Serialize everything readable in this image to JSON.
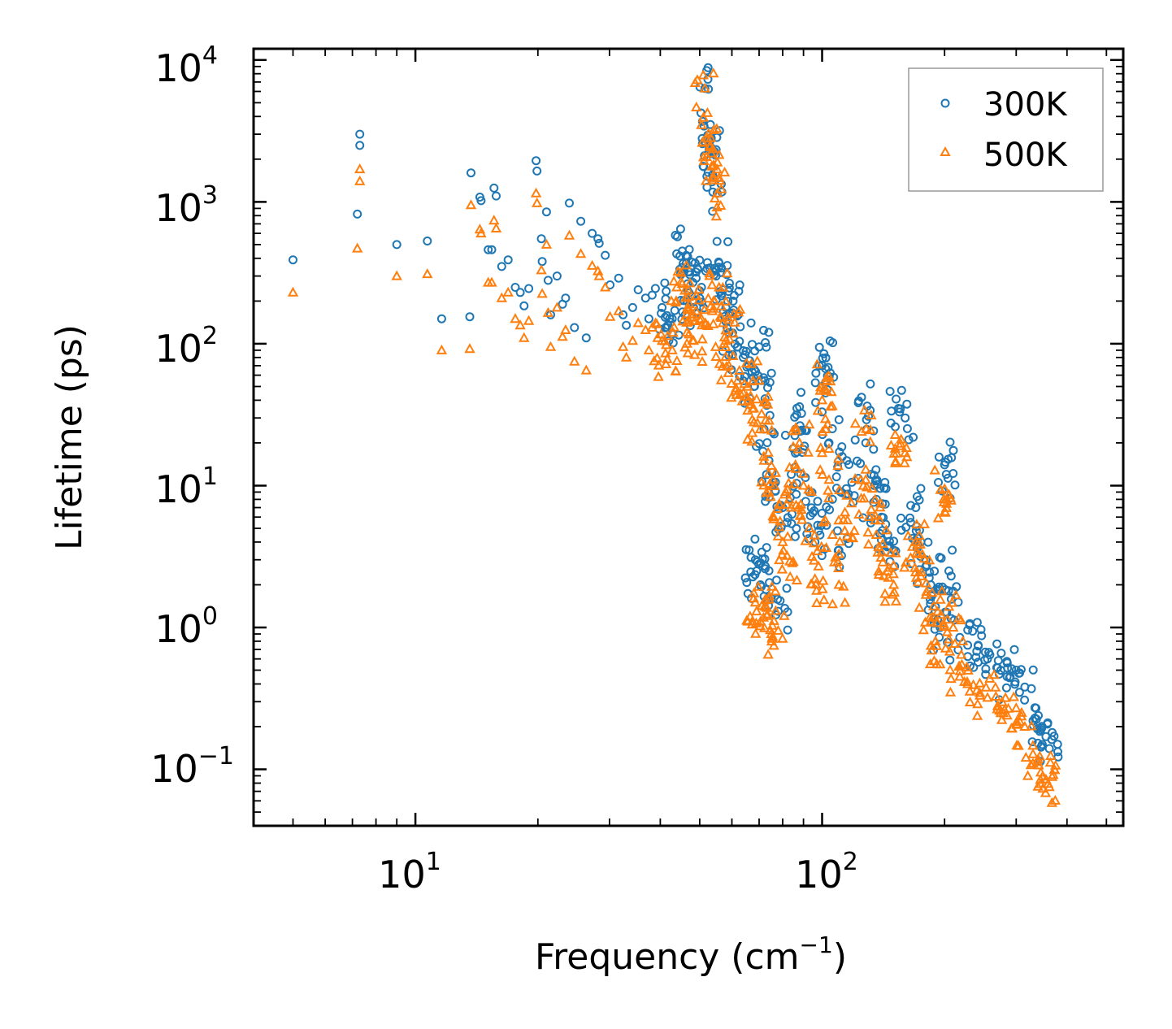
{
  "chart_data": {
    "type": "scatter",
    "xscale": "log",
    "yscale": "log",
    "xlim": [
      4,
      550
    ],
    "ylim": [
      0.04,
      12000
    ],
    "xlabel": "Frequency (cm",
    "xlabel_exp": "−1",
    "xlabel_close": ")",
    "ylabel": "Lifetime (ps)",
    "x_ticks": [
      {
        "base": "10",
        "exp": "1",
        "value": 10
      },
      {
        "base": "10",
        "exp": "2",
        "value": 100
      }
    ],
    "y_ticks": [
      {
        "base": "10",
        "exp": "4",
        "value": 10000
      },
      {
        "base": "10",
        "exp": "3",
        "value": 1000
      },
      {
        "base": "10",
        "exp": "2",
        "value": 100
      },
      {
        "base": "10",
        "exp": "1",
        "value": 10
      },
      {
        "base": "10",
        "exp": "0",
        "value": 1
      },
      {
        "base": "10",
        "exp": "−1",
        "value": 0.1
      }
    ],
    "legend": {
      "position": "top-right"
    },
    "series": [
      {
        "name": "300K",
        "marker": "circle",
        "color": "#1f77b4",
        "points": [
          [
            5.0,
            390
          ],
          [
            7.2,
            820
          ],
          [
            7.3,
            3000
          ],
          [
            7.3,
            2500
          ],
          [
            9.0,
            500
          ],
          [
            10.7,
            530
          ],
          [
            11.6,
            150
          ],
          [
            13.6,
            155
          ],
          [
            13.7,
            1600
          ],
          [
            14.4,
            1080
          ],
          [
            14.5,
            1020
          ],
          [
            15.1,
            460
          ],
          [
            15.4,
            460
          ],
          [
            15.6,
            1250
          ],
          [
            15.8,
            1100
          ],
          [
            16.3,
            350
          ],
          [
            16.9,
            390
          ],
          [
            17.6,
            250
          ],
          [
            18.1,
            230
          ],
          [
            18.5,
            185
          ],
          [
            19.0,
            245
          ],
          [
            19.8,
            1950
          ],
          [
            19.9,
            1650
          ],
          [
            20.4,
            550
          ],
          [
            20.5,
            380
          ],
          [
            21.0,
            850
          ],
          [
            21.2,
            280
          ],
          [
            21.5,
            160
          ],
          [
            22.3,
            300
          ],
          [
            23.0,
            190
          ],
          [
            23.4,
            210
          ],
          [
            23.9,
            980
          ],
          [
            24.6,
            130
          ],
          [
            25.5,
            730
          ],
          [
            26.3,
            110
          ],
          [
            27.2,
            600
          ],
          [
            28.1,
            550
          ],
          [
            28.3,
            510
          ],
          [
            29.3,
            420
          ],
          [
            30.1,
            260
          ],
          [
            31.6,
            290
          ],
          [
            32.4,
            160
          ],
          [
            33.0,
            135
          ],
          [
            34.2,
            180
          ],
          [
            35.3,
            240
          ],
          [
            36.8,
            210
          ],
          [
            37.5,
            150
          ],
          [
            38.2,
            220
          ],
          [
            40.4,
            180
          ],
          [
            41.6,
            130
          ],
          [
            42.8,
            150
          ],
          [
            43.9,
            430
          ],
          [
            45.3,
            450
          ],
          [
            46.5,
            200
          ],
          [
            47.2,
            320
          ],
          [
            48.3,
            180
          ],
          [
            49.0,
            290
          ],
          [
            50.5,
            250
          ],
          [
            51.5,
            6300
          ],
          [
            52.3,
            2950
          ],
          [
            53.0,
            2700
          ],
          [
            53.4,
            2400
          ],
          [
            53.8,
            1550
          ],
          [
            55.2,
            1150
          ],
          [
            54.4,
            340
          ],
          [
            55.8,
            370
          ],
          [
            57.0,
            240
          ],
          [
            58.0,
            180
          ],
          [
            59.0,
            120
          ],
          [
            60.4,
            200
          ],
          [
            62.0,
            95
          ],
          [
            64.0,
            80
          ],
          [
            66.0,
            70
          ],
          [
            68.0,
            50
          ],
          [
            70.0,
            95
          ],
          [
            71.0,
            55
          ],
          [
            72.0,
            25
          ],
          [
            74.0,
            15
          ],
          [
            76.0,
            10
          ],
          [
            68.5,
            3.0
          ],
          [
            69.0,
            2.5
          ],
          [
            70.5,
            2.0
          ],
          [
            72.5,
            2.7
          ],
          [
            75.0,
            1.6
          ],
          [
            78.0,
            1.3
          ],
          [
            80.0,
            7.0
          ],
          [
            82.0,
            5.5
          ],
          [
            84.0,
            12
          ],
          [
            86.0,
            25
          ],
          [
            88.0,
            36
          ],
          [
            90.0,
            18
          ],
          [
            93.0,
            9.0
          ],
          [
            96.0,
            4.0
          ],
          [
            98.0,
            4.8
          ],
          [
            100.0,
            70
          ],
          [
            101.0,
            85
          ],
          [
            102.0,
            45
          ],
          [
            104.0,
            20
          ],
          [
            106.0,
            8.0
          ],
          [
            110.0,
            3.5
          ],
          [
            115.0,
            15
          ],
          [
            120.0,
            8.5
          ],
          [
            125.0,
            42
          ],
          [
            128.0,
            20
          ],
          [
            132.0,
            12
          ],
          [
            136.0,
            8.0
          ],
          [
            140.0,
            6.0
          ],
          [
            145.0,
            4.5
          ],
          [
            150.0,
            3.5
          ],
          [
            155.0,
            33
          ],
          [
            160.0,
            30
          ],
          [
            165.0,
            5.5
          ],
          [
            170.0,
            7.0
          ],
          [
            175.0,
            4.0
          ],
          [
            180.0,
            3.0
          ],
          [
            185.0,
            2.0
          ],
          [
            190.0,
            1.4
          ],
          [
            195.0,
            1.0
          ],
          [
            200.0,
            14
          ],
          [
            202.0,
            12
          ],
          [
            205.0,
            2.5
          ],
          [
            210.0,
            1.8
          ],
          [
            218.0,
            0.85
          ],
          [
            228.0,
            0.75
          ],
          [
            240.0,
            0.68
          ],
          [
            255.0,
            0.6
          ],
          [
            270.0,
            0.52
          ],
          [
            285.0,
            0.45
          ],
          [
            300.0,
            0.5
          ],
          [
            315.0,
            0.38
          ],
          [
            330.0,
            0.22
          ],
          [
            345.0,
            0.19
          ],
          [
            355.0,
            0.17
          ],
          [
            362.0,
            0.14
          ]
        ]
      },
      {
        "name": "500K",
        "marker": "triangle",
        "color": "#ff7f0e",
        "points": [
          [
            5.0,
            230
          ],
          [
            7.2,
            470
          ],
          [
            7.3,
            1700
          ],
          [
            7.3,
            1400
          ],
          [
            9.0,
            300
          ],
          [
            10.7,
            310
          ],
          [
            11.6,
            90
          ],
          [
            13.6,
            92
          ],
          [
            13.7,
            950
          ],
          [
            14.4,
            640
          ],
          [
            14.5,
            600
          ],
          [
            15.1,
            270
          ],
          [
            15.4,
            270
          ],
          [
            15.6,
            740
          ],
          [
            15.8,
            650
          ],
          [
            16.3,
            210
          ],
          [
            16.9,
            230
          ],
          [
            17.6,
            150
          ],
          [
            18.1,
            135
          ],
          [
            18.5,
            110
          ],
          [
            19.0,
            145
          ],
          [
            19.8,
            1150
          ],
          [
            19.9,
            980
          ],
          [
            20.4,
            330
          ],
          [
            20.5,
            225
          ],
          [
            21.0,
            500
          ],
          [
            21.2,
            165
          ],
          [
            21.5,
            95
          ],
          [
            22.3,
            180
          ],
          [
            23.0,
            112
          ],
          [
            23.4,
            125
          ],
          [
            23.9,
            580
          ],
          [
            24.6,
            75
          ],
          [
            25.5,
            430
          ],
          [
            26.3,
            65
          ],
          [
            27.2,
            355
          ],
          [
            28.1,
            325
          ],
          [
            28.3,
            300
          ],
          [
            29.3,
            250
          ],
          [
            30.1,
            155
          ],
          [
            31.6,
            170
          ],
          [
            32.4,
            95
          ],
          [
            33.0,
            80
          ],
          [
            34.2,
            105
          ],
          [
            35.3,
            140
          ],
          [
            36.8,
            125
          ],
          [
            37.5,
            90
          ],
          [
            38.2,
            130
          ],
          [
            40.4,
            105
          ],
          [
            41.6,
            78
          ],
          [
            42.8,
            90
          ],
          [
            43.9,
            250
          ],
          [
            45.3,
            265
          ],
          [
            46.5,
            120
          ],
          [
            47.2,
            190
          ],
          [
            48.3,
            105
          ],
          [
            49.0,
            170
          ],
          [
            50.5,
            150
          ],
          [
            51.5,
            6300
          ],
          [
            52.3,
            2800
          ],
          [
            53.0,
            2500
          ],
          [
            53.4,
            2200
          ],
          [
            53.8,
            1500
          ],
          [
            55.2,
            1150
          ],
          [
            54.4,
            200
          ],
          [
            55.8,
            250
          ],
          [
            57.0,
            140
          ],
          [
            58.0,
            105
          ],
          [
            59.0,
            70
          ],
          [
            60.4,
            118
          ],
          [
            62.0,
            55
          ],
          [
            64.0,
            45
          ],
          [
            66.0,
            40
          ],
          [
            68.0,
            28
          ],
          [
            70.0,
            55
          ],
          [
            71.0,
            32
          ],
          [
            72.0,
            15
          ],
          [
            74.0,
            9
          ],
          [
            76.0,
            6
          ],
          [
            68.5,
            1.5
          ],
          [
            69.0,
            1.3
          ],
          [
            70.5,
            1.1
          ],
          [
            72.5,
            1.4
          ],
          [
            75.0,
            0.9
          ],
          [
            78.0,
            0.95
          ],
          [
            80.0,
            4.0
          ],
          [
            82.0,
            3.2
          ],
          [
            84.0,
            7.0
          ],
          [
            86.0,
            14
          ],
          [
            88.0,
            20
          ],
          [
            90.0,
            10
          ],
          [
            93.0,
            5.0
          ],
          [
            96.0,
            2.2
          ],
          [
            98.0,
            2.7
          ],
          [
            100.0,
            40
          ],
          [
            101.0,
            48
          ],
          [
            102.0,
            25
          ],
          [
            104.0,
            11
          ],
          [
            106.0,
            4.5
          ],
          [
            110.0,
            2.0
          ],
          [
            115.0,
            8.5
          ],
          [
            120.0,
            4.8
          ],
          [
            125.0,
            24
          ],
          [
            128.0,
            11
          ],
          [
            132.0,
            6.8
          ],
          [
            136.0,
            4.5
          ],
          [
            140.0,
            3.4
          ],
          [
            145.0,
            2.5
          ],
          [
            150.0,
            2.0
          ],
          [
            155.0,
            19
          ],
          [
            160.0,
            17
          ],
          [
            165.0,
            3.1
          ],
          [
            170.0,
            4.0
          ],
          [
            175.0,
            2.3
          ],
          [
            180.0,
            1.7
          ],
          [
            185.0,
            1.1
          ],
          [
            190.0,
            0.8
          ],
          [
            195.0,
            0.55
          ],
          [
            200.0,
            9.5
          ],
          [
            202.0,
            8.0
          ],
          [
            205.0,
            1.4
          ],
          [
            210.0,
            1.0
          ],
          [
            218.0,
            0.45
          ],
          [
            228.0,
            0.4
          ],
          [
            240.0,
            0.36
          ],
          [
            255.0,
            0.32
          ],
          [
            270.0,
            0.28
          ],
          [
            285.0,
            0.24
          ],
          [
            300.0,
            0.27
          ],
          [
            315.0,
            0.2
          ],
          [
            330.0,
            0.11
          ],
          [
            345.0,
            0.095
          ],
          [
            355.0,
            0.085
          ],
          [
            362.0,
            0.075
          ]
        ]
      }
    ]
  }
}
